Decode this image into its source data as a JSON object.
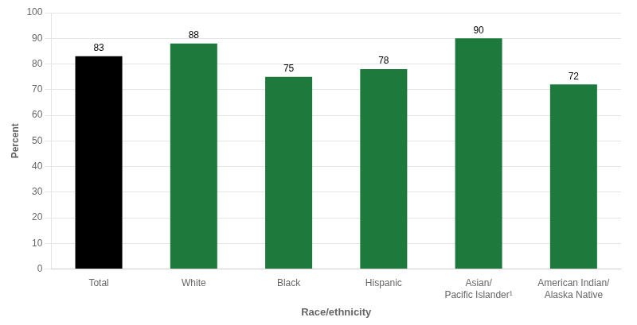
{
  "chart_data": {
    "type": "bar",
    "categories": [
      "Total",
      "White",
      "Black",
      "Hispanic",
      "Asian/\nPacific Islander¹",
      "American Indian/\nAlaska Native"
    ],
    "values": [
      83,
      88,
      75,
      78,
      90,
      72
    ],
    "colors": [
      "#000000",
      "#1e7a3c",
      "#1e7a3c",
      "#1e7a3c",
      "#1e7a3c",
      "#1e7a3c"
    ],
    "xlabel": "Race/ethnicity",
    "ylabel": "Percent",
    "ylim": [
      0,
      100
    ],
    "yticks": [
      0,
      10,
      20,
      30,
      40,
      50,
      60,
      70,
      80,
      90,
      100
    ],
    "grid": true,
    "data_labels": true
  }
}
